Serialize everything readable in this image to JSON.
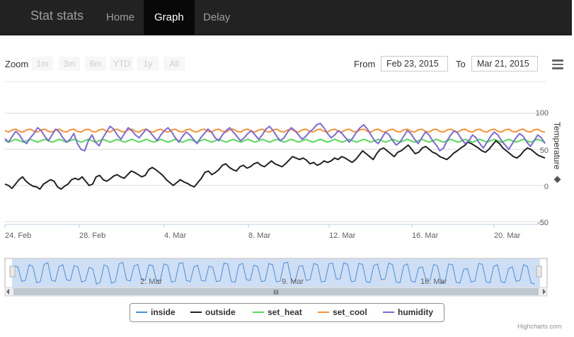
{
  "nav": {
    "brand": "Stat stats",
    "items": [
      {
        "label": "Home",
        "active": false
      },
      {
        "label": "Graph",
        "active": true
      },
      {
        "label": "Delay",
        "active": false
      }
    ]
  },
  "toolbar": {
    "zoom_label": "Zoom",
    "zoom_buttons": [
      "1m",
      "3m",
      "6m",
      "YTD",
      "1y",
      "All"
    ],
    "from_label": "From",
    "from_value": "Feb 23, 2015",
    "to_label": "To",
    "to_value": "Mar 21, 2015",
    "menu_icon": "hamburger-menu-icon"
  },
  "chart_data": {
    "type": "line",
    "y_axis": {
      "title": "Temperature",
      "title_icon": "diamond-icon",
      "ticks": [
        "100",
        "50",
        "0",
        "-50"
      ],
      "ylim": [
        -50,
        100
      ],
      "grid": true
    },
    "x_axis": {
      "ticks": [
        "24. Feb",
        "28. Feb",
        "4. Mar",
        "8. Mar",
        "12. Mar",
        "16. Mar",
        "20. Mar"
      ]
    },
    "series": [
      {
        "name": "inside",
        "color": "#4a8fd9",
        "values": []
      },
      {
        "name": "outside",
        "color": "#222222",
        "values": [
          2,
          0,
          -4,
          2,
          8,
          12,
          6,
          2,
          -1,
          -2,
          -5,
          2,
          5,
          8,
          6,
          -2,
          -5,
          -1,
          2,
          8,
          10,
          8,
          12,
          6,
          0,
          2,
          12,
          14,
          8,
          6,
          9,
          13,
          15,
          12,
          10,
          15,
          20,
          18,
          15,
          12,
          14,
          22,
          25,
          22,
          18,
          14,
          8,
          4,
          0,
          4,
          8,
          5,
          3,
          0,
          -2,
          4,
          10,
          18,
          20,
          15,
          18,
          22,
          28,
          30,
          25,
          22,
          20,
          26,
          28,
          24,
          26,
          30,
          32,
          28,
          26,
          30,
          34,
          30,
          28,
          26,
          30,
          35,
          40,
          38,
          36,
          38,
          35,
          30,
          32,
          28,
          30,
          34,
          32,
          34,
          38,
          36,
          40,
          38,
          35,
          32,
          36,
          42,
          48,
          44,
          40,
          36,
          44,
          50,
          52,
          48,
          44,
          40,
          46,
          48,
          52,
          56,
          50,
          44,
          46,
          52,
          54,
          50,
          46,
          44,
          40,
          38,
          36,
          40,
          45,
          48,
          52,
          55,
          60,
          58,
          55,
          52,
          48,
          46,
          50,
          56,
          62,
          58,
          52,
          48,
          44,
          40,
          38,
          42,
          48,
          52,
          50,
          46,
          42,
          40,
          38
        ]
      },
      {
        "name": "set_heat",
        "color": "#57d957",
        "values": [
          62,
          60,
          62,
          64,
          62,
          60,
          62,
          64,
          62,
          60,
          62,
          64,
          62,
          60,
          62,
          64,
          62,
          60,
          62,
          64,
          62,
          60,
          62,
          64,
          62,
          60,
          62,
          64,
          62,
          60,
          62,
          64,
          62,
          60,
          62,
          64,
          62,
          60,
          62,
          64,
          62,
          60,
          62,
          64,
          62,
          60,
          62,
          64,
          62,
          60,
          62,
          64,
          62,
          60,
          62,
          64,
          62,
          60,
          62,
          64,
          62,
          60,
          62,
          64,
          62,
          60,
          62,
          64,
          62,
          60,
          62,
          64,
          62,
          60,
          62,
          64,
          62,
          60,
          62,
          64,
          62,
          60,
          62,
          64,
          62,
          60,
          62,
          64,
          62,
          60,
          62,
          64,
          62,
          60,
          62,
          64,
          62,
          60,
          62,
          64,
          62,
          60,
          62,
          64,
          62,
          60,
          62,
          64,
          62,
          60,
          62,
          64,
          62,
          60,
          62,
          64,
          62,
          60,
          62,
          64,
          62,
          60,
          62,
          64,
          62,
          60,
          62,
          64,
          62,
          60,
          62,
          64,
          62,
          60,
          62,
          64,
          62,
          60,
          62,
          64,
          62,
          60,
          62,
          64,
          62,
          60,
          62,
          64,
          62,
          60
        ]
      },
      {
        "name": "set_cool",
        "color": "#f5933a",
        "values": [
          76,
          74,
          77,
          78,
          75,
          74,
          77,
          78,
          75,
          74,
          77,
          78,
          75,
          74,
          77,
          78,
          75,
          74,
          77,
          78,
          75,
          74,
          77,
          78,
          75,
          74,
          77,
          78,
          75,
          74,
          77,
          78,
          75,
          74,
          77,
          78,
          75,
          74,
          77,
          78,
          75,
          74,
          77,
          78,
          75,
          74,
          77,
          78,
          75,
          74,
          77,
          78,
          75,
          74,
          77,
          78,
          75,
          74,
          77,
          78,
          75,
          74,
          77,
          78,
          75,
          74,
          77,
          78,
          75,
          74,
          77,
          78,
          75,
          74,
          77,
          78,
          75,
          74,
          77,
          78,
          75,
          74,
          77,
          78,
          75,
          74,
          77,
          78,
          75,
          74,
          77,
          78,
          75,
          74,
          77,
          78,
          75,
          74,
          77,
          78,
          75,
          74,
          77,
          78,
          75,
          74,
          77,
          78,
          75,
          74,
          77,
          78,
          75,
          74,
          77,
          78,
          75,
          74,
          77,
          78,
          75,
          74,
          77,
          78,
          75,
          74,
          77,
          78,
          75,
          74,
          77,
          78,
          75,
          74,
          77,
          78,
          75,
          74,
          77,
          78,
          75,
          74,
          77,
          78,
          75,
          74,
          77,
          78,
          75,
          74
        ]
      },
      {
        "name": "humidity",
        "color": "#7b68e0",
        "values": [
          65,
          60,
          68,
          75,
          70,
          62,
          58,
          66,
          72,
          80,
          76,
          68,
          62,
          70,
          78,
          74,
          66,
          60,
          64,
          72,
          58,
          50,
          48,
          62,
          70,
          60,
          55,
          66,
          74,
          82,
          78,
          70,
          64,
          72,
          80,
          76,
          70,
          66,
          72,
          78,
          74,
          68,
          62,
          70,
          76,
          80,
          74,
          66,
          60,
          68,
          74,
          70,
          64,
          58,
          66,
          72,
          78,
          74,
          66,
          62,
          70,
          76,
          80,
          74,
          68,
          62,
          66,
          72,
          76,
          70,
          64,
          70,
          78,
          82,
          76,
          68,
          62,
          66,
          74,
          80,
          76,
          70,
          64,
          68,
          74,
          78,
          84,
          86,
          80,
          72,
          66,
          70,
          76,
          72,
          66,
          60,
          66,
          74,
          80,
          84,
          78,
          70,
          62,
          58,
          66,
          74,
          70,
          62,
          56,
          60,
          68,
          76,
          72,
          64,
          58,
          66,
          74,
          70,
          62,
          56,
          48,
          52,
          62,
          70,
          76,
          72,
          64,
          58,
          62,
          70,
          66,
          58,
          52,
          60,
          68,
          74,
          70,
          62,
          56,
          50,
          58,
          66,
          72,
          68,
          60,
          54,
          62,
          70,
          66,
          58
        ]
      }
    ]
  },
  "navigator": {
    "ticks": [
      "2. Mar",
      "9. Mar",
      "16. Mar"
    ],
    "scrollbar_grip": "III"
  },
  "legend": [
    {
      "name": "inside",
      "color": "#4a8fd9"
    },
    {
      "name": "outside",
      "color": "#222222"
    },
    {
      "name": "set_heat",
      "color": "#57d957"
    },
    {
      "name": "set_cool",
      "color": "#f5933a"
    },
    {
      "name": "humidity",
      "color": "#7b68e0"
    }
  ],
  "credits": "Highcharts.com"
}
